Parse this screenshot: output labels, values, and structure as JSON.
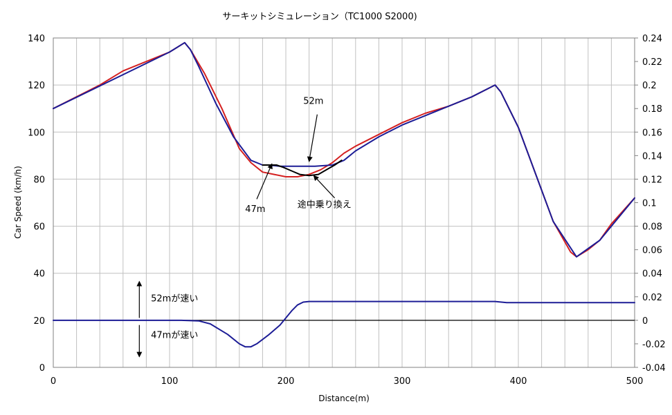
{
  "chart_data": {
    "type": "line",
    "title": "サーキットシミュレーション（TC1000 S2000)",
    "xlabel": "Distance(m)",
    "ylabel": "Car Speed (km/h)",
    "y2label": "",
    "xlim": [
      0,
      500
    ],
    "ylim": [
      0,
      140
    ],
    "y2lim": [
      -0.04,
      0.24
    ],
    "xticks": [
      "0",
      "100",
      "200",
      "300",
      "400",
      "500"
    ],
    "yticks": [
      "0",
      "20",
      "40",
      "60",
      "80",
      "100",
      "120",
      "140"
    ],
    "y2ticks": [
      "-0.04",
      "-0.02",
      "0",
      "0.02",
      "0.04",
      "0.06",
      "0.08",
      "0.1",
      "0.12",
      "0.14",
      "0.16",
      "0.18",
      "0.2",
      "0.22",
      "0.24"
    ],
    "grid": true,
    "legend": "none",
    "colors": {
      "red_line": "#d42020",
      "blue_line": "#1c1c96",
      "black_line": "#000000",
      "diff_line": "#1c1c96",
      "zero_line": "#000000",
      "grid": "#c0c0c0",
      "plot_border": "#808080"
    },
    "series": [
      {
        "color": "red",
        "axis": "left",
        "x": [
          0,
          20,
          40,
          60,
          80,
          100,
          113,
          118,
          130,
          145,
          160,
          170,
          180,
          190,
          200,
          210,
          220,
          230,
          240,
          250,
          260,
          280,
          300,
          320,
          340,
          360,
          380,
          385,
          400,
          415,
          430,
          445,
          450,
          460,
          470,
          480,
          500
        ],
        "y": [
          110,
          115,
          120,
          126,
          130,
          134,
          138,
          135,
          125,
          110,
          93,
          87,
          83,
          82,
          81,
          81,
          82,
          84,
          87,
          91,
          94,
          99,
          104,
          108,
          111,
          115,
          120,
          117,
          102,
          82,
          62,
          49,
          47,
          50,
          54,
          61,
          72
        ]
      },
      {
        "color": "blue",
        "axis": "left",
        "x": [
          0,
          100,
          113,
          118,
          125,
          140,
          155,
          170,
          180,
          185,
          195,
          210,
          225,
          240,
          250,
          260,
          280,
          300,
          320,
          340,
          360,
          380,
          385,
          400,
          430,
          450,
          470,
          500
        ],
        "y": [
          110,
          134,
          138,
          135,
          128,
          112,
          98,
          88,
          86,
          86,
          85.5,
          85.5,
          85.5,
          86,
          88,
          92,
          98,
          103,
          107,
          111,
          115,
          120,
          117,
          102,
          62,
          47,
          54,
          72
        ]
      },
      {
        "color": "black",
        "axis": "left",
        "x": [
          180,
          185,
          192,
          198,
          205,
          212,
          220,
          228,
          235,
          242,
          248
        ],
        "y": [
          86,
          86,
          86,
          85,
          83.5,
          82,
          81.5,
          82,
          84,
          86,
          88
        ]
      },
      {
        "color": "blue",
        "axis": "right",
        "x": [
          0,
          110,
          125,
          135,
          150,
          160,
          165,
          170,
          175,
          185,
          195,
          205,
          210,
          215,
          220,
          225,
          380,
          390,
          450,
          500
        ],
        "y": [
          0,
          0,
          -0.0005,
          -0.003,
          -0.012,
          -0.02,
          -0.0225,
          -0.0225,
          -0.02,
          -0.0125,
          -0.004,
          0.008,
          0.013,
          0.0155,
          0.016,
          0.016,
          0.016,
          0.015,
          0.015,
          0.015
        ]
      }
    ],
    "annotations": [
      {
        "text": "52m",
        "x": 215,
        "y": 112
      },
      {
        "text": "47m",
        "x": 165,
        "y": 66
      },
      {
        "text": "途中乗り換え",
        "x": 210,
        "y": 68
      },
      {
        "text": "52mが速い",
        "x": 84,
        "y": 28
      },
      {
        "text": "47mが速い",
        "x": 84,
        "y": 12.5
      }
    ],
    "arrows": [
      {
        "from": [
          227,
          107.5
        ],
        "to": [
          220,
          87.5
        ]
      },
      {
        "from": [
          175,
          71.5
        ],
        "to": [
          188,
          86.5
        ]
      },
      {
        "from": [
          242,
          72
        ],
        "to": [
          224,
          81.5
        ]
      },
      {
        "from": [
          74,
          21
        ],
        "to": [
          74,
          36.5
        ]
      },
      {
        "from": [
          74,
          18
        ],
        "to": [
          74,
          4.5
        ]
      }
    ]
  }
}
